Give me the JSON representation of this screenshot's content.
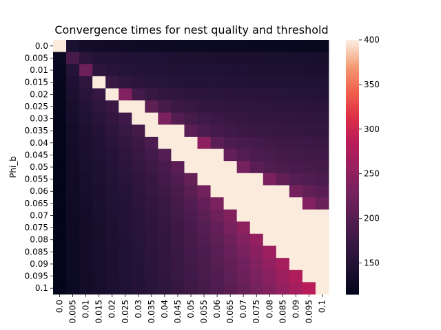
{
  "chart_data": {
    "type": "heatmap",
    "title": "Convergence times for nest quality and threshold",
    "xlabel": "",
    "ylabel": "Phi_b",
    "x_categories": [
      "0.0",
      "0.005",
      "0.01",
      "0.015",
      "0.02",
      "0.025",
      "0.03",
      "0.035",
      "0.04",
      "0.045",
      "0.05",
      "0.055",
      "0.06",
      "0.065",
      "0.07",
      "0.075",
      "0.08",
      "0.085",
      "0.09",
      "0.095",
      "0.1"
    ],
    "y_categories": [
      "0.0",
      "0.005",
      "0.01",
      "0.015",
      "0.02",
      "0.025",
      "0.03",
      "0.035",
      "0.04",
      "0.045",
      "0.05",
      "0.055",
      "0.06",
      "0.065",
      "0.07",
      "0.075",
      "0.08",
      "0.085",
      "0.09",
      "0.095",
      "0.1"
    ],
    "values": [
      [
        400,
        140,
        134,
        132,
        130,
        129,
        128,
        127,
        127,
        126,
        126,
        125,
        125,
        124,
        124,
        123,
        123,
        122,
        122,
        121,
        121
      ],
      [
        125,
        185,
        158,
        152,
        150,
        148,
        147,
        146,
        145,
        144,
        144,
        143,
        142,
        142,
        141,
        141,
        140,
        140,
        139,
        139,
        138
      ],
      [
        122,
        150,
        222,
        160,
        155,
        153,
        151,
        150,
        149,
        148,
        147,
        146,
        146,
        145,
        145,
        144,
        144,
        143,
        143,
        142,
        142
      ],
      [
        120,
        145,
        162,
        400,
        172,
        162,
        158,
        156,
        154,
        153,
        152,
        151,
        150,
        150,
        149,
        148,
        148,
        147,
        147,
        146,
        146
      ],
      [
        119,
        141,
        155,
        168,
        400,
        238,
        182,
        170,
        165,
        162,
        160,
        159,
        158,
        157,
        156,
        155,
        155,
        154,
        153,
        153,
        152
      ],
      [
        118,
        138,
        150,
        160,
        172,
        400,
        400,
        208,
        185,
        175,
        170,
        167,
        165,
        163,
        162,
        161,
        160,
        159,
        158,
        157,
        157
      ],
      [
        117,
        136,
        147,
        155,
        165,
        178,
        400,
        400,
        232,
        198,
        185,
        178,
        174,
        171,
        169,
        167,
        166,
        165,
        164,
        163,
        162
      ],
      [
        116,
        134,
        144,
        151,
        160,
        170,
        183,
        400,
        400,
        400,
        205,
        190,
        182,
        178,
        175,
        172,
        170,
        169,
        168,
        167,
        166
      ],
      [
        116,
        133,
        142,
        148,
        156,
        165,
        175,
        190,
        400,
        400,
        400,
        248,
        205,
        192,
        186,
        182,
        179,
        177,
        175,
        174,
        173
      ],
      [
        115,
        132,
        140,
        146,
        153,
        161,
        170,
        182,
        198,
        400,
        400,
        400,
        400,
        212,
        198,
        190,
        186,
        183,
        181,
        179,
        178
      ],
      [
        115,
        131,
        139,
        144,
        151,
        158,
        166,
        176,
        188,
        205,
        400,
        400,
        400,
        400,
        228,
        205,
        196,
        191,
        188,
        185,
        183
      ],
      [
        114,
        130,
        137,
        143,
        149,
        156,
        163,
        171,
        182,
        196,
        215,
        400,
        400,
        400,
        400,
        400,
        232,
        210,
        200,
        194,
        190
      ],
      [
        114,
        129,
        136,
        141,
        147,
        153,
        160,
        168,
        177,
        189,
        204,
        225,
        400,
        400,
        400,
        400,
        400,
        400,
        226,
        210,
        202
      ],
      [
        113,
        128,
        135,
        140,
        146,
        151,
        158,
        165,
        173,
        184,
        197,
        214,
        232,
        400,
        400,
        400,
        400,
        400,
        400,
        238,
        218
      ],
      [
        113,
        128,
        134,
        139,
        145,
        150,
        156,
        163,
        170,
        180,
        192,
        206,
        222,
        240,
        400,
        400,
        400,
        400,
        400,
        400,
        400
      ],
      [
        113,
        127,
        133,
        138,
        144,
        149,
        155,
        161,
        168,
        177,
        188,
        200,
        214,
        230,
        248,
        400,
        400,
        400,
        400,
        400,
        400
      ],
      [
        112,
        127,
        133,
        138,
        143,
        148,
        154,
        160,
        167,
        175,
        185,
        196,
        208,
        222,
        238,
        255,
        400,
        400,
        400,
        400,
        400
      ],
      [
        112,
        126,
        132,
        137,
        142,
        147,
        153,
        159,
        165,
        173,
        182,
        192,
        203,
        216,
        230,
        246,
        262,
        400,
        400,
        400,
        400
      ],
      [
        112,
        126,
        132,
        137,
        142,
        147,
        152,
        158,
        164,
        171,
        180,
        189,
        199,
        211,
        224,
        238,
        253,
        270,
        400,
        400,
        400
      ],
      [
        111,
        126,
        131,
        136,
        141,
        146,
        151,
        157,
        163,
        170,
        178,
        187,
        196,
        207,
        219,
        232,
        246,
        261,
        278,
        400,
        400
      ],
      [
        111,
        125,
        131,
        136,
        141,
        146,
        151,
        156,
        162,
        169,
        177,
        185,
        194,
        204,
        215,
        227,
        240,
        254,
        269,
        285,
        400
      ]
    ],
    "vmin": 115,
    "vmax": 400,
    "colorbar_ticks": [
      150,
      200,
      250,
      300,
      350,
      400
    ],
    "colormap": "rocket",
    "grid": false,
    "legend": "colorbar-right"
  }
}
